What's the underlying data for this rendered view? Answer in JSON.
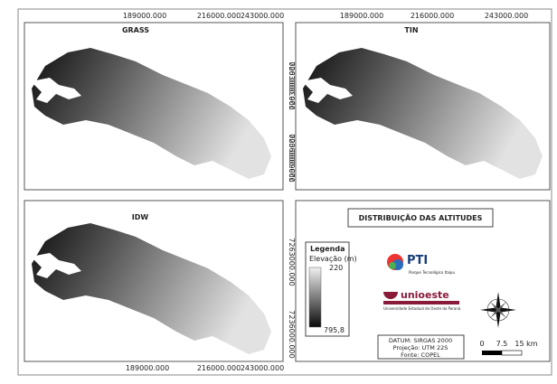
{
  "maps": [
    {
      "title": "GRASS",
      "x_labels": [
        "189000.000",
        "216000.000",
        "243000.000"
      ],
      "y_labels": [
        "7263000.000",
        "7236000.000"
      ]
    },
    {
      "title": "TIN",
      "x_labels": [
        "189000.000",
        "216000.000",
        "243000.000"
      ],
      "y_labels": [
        "7263000.000",
        "7236000.000"
      ]
    },
    {
      "title": "IDW",
      "x_labels": [
        "189000.000",
        "216000.000",
        "243000.000"
      ],
      "y_labels": [
        "7263000.000",
        "7236000.000"
      ]
    }
  ],
  "legend": {
    "title": "DISTRIBUIÇÃO DAS ALTITUDES",
    "heading": "Legenda",
    "variable": "Elevação (m)",
    "max_label": "220",
    "min_label": "795,8",
    "logo1": "PTI",
    "logo1_sub": "Parque Tecnológico Itaipu",
    "logo2": "unioeste",
    "logo2_sub": "Universidade Estadual do Oeste do Paraná",
    "datum": "DATUM: SIRGAS 2000",
    "projection": "Projeção: UTM 22S",
    "source": "Fonte: COPEL",
    "scale": [
      "0",
      "7.5",
      "15 km"
    ]
  }
}
